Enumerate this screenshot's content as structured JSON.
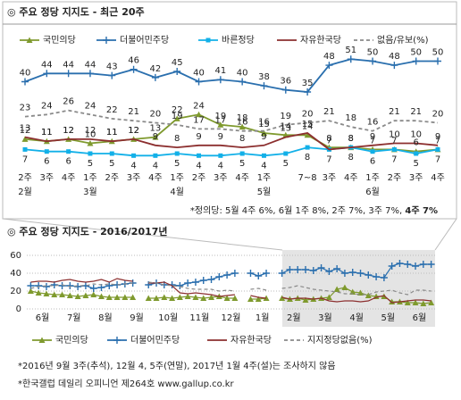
{
  "chart_data": [
    {
      "type": "line",
      "title": "◎  주요 정당 지지도 - 최근 20주",
      "categories": [
        "2주",
        "3주",
        "4주",
        "1주",
        "2주",
        "3주",
        "4주",
        "1주",
        "2주",
        "3주",
        "4주",
        "1주",
        null,
        "7~8",
        "3주",
        "4주",
        "1주",
        "2주",
        "3주",
        "4주"
      ],
      "month_labels": [
        "2월",
        null,
        null,
        "3월",
        null,
        null,
        null,
        "4월",
        null,
        null,
        null,
        "5월",
        null,
        null,
        null,
        null,
        "6월",
        null,
        null,
        null
      ],
      "ylim": [
        0,
        55
      ],
      "data_labels": true,
      "series": [
        {
          "name": "국민의당",
          "color": "#7f9a2e",
          "marker": "triangle",
          "values": [
            12,
            11,
            12,
            10,
            11,
            12,
            13,
            22,
            24,
            19,
            18,
            15,
            14,
            14,
            8,
            8,
            7,
            7,
            6,
            7
          ]
        },
        {
          "name": "더불어민주당",
          "color": "#2a6fae",
          "marker": "plus",
          "values": [
            40,
            44,
            44,
            44,
            43,
            46,
            42,
            45,
            40,
            41,
            40,
            38,
            36,
            35,
            48,
            51,
            50,
            48,
            50,
            50
          ]
        },
        {
          "name": "바른정당",
          "color": "#12b0e8",
          "marker": "square",
          "label_position": "below",
          "values": [
            7,
            6,
            6,
            5,
            5,
            4,
            4,
            5,
            4,
            4,
            5,
            4,
            5,
            8,
            7,
            8,
            6,
            7,
            5,
            7
          ]
        },
        {
          "name": "자유한국당",
          "color": "#8c2f2f",
          "values": [
            13,
            11,
            12,
            12,
            11,
            12,
            9,
            8,
            9,
            9,
            8,
            9,
            13,
            15,
            7,
            8,
            9,
            10,
            10,
            9
          ]
        },
        {
          "name": "없음/유보(%)",
          "color": "#8a8a8a",
          "dashed": true,
          "values": [
            23,
            24,
            26,
            24,
            22,
            21,
            20,
            19,
            17,
            17,
            16,
            16,
            19,
            20,
            21,
            18,
            16,
            21,
            21,
            20
          ]
        }
      ],
      "note": "*정의당: 5월 4주 6%, 6월 1주 8%, 2주 7%, 3주 7%,",
      "note_bold": "4주 7%"
    },
    {
      "type": "line",
      "title": "◎  주요 정당 지지도 - 2016/2017년",
      "categories": [
        "6월",
        null,
        null,
        null,
        "7월",
        null,
        null,
        null,
        "8월",
        null,
        null,
        null,
        "9월",
        null,
        null,
        null,
        "10월",
        null,
        null,
        null,
        "11월",
        null,
        null,
        null,
        "12월",
        null,
        null,
        null,
        "1월",
        null,
        null,
        null,
        "2월",
        null,
        null,
        null,
        "3월",
        null,
        null,
        null,
        "4월",
        null,
        null,
        null,
        "5월",
        null,
        null,
        null,
        "6월",
        null,
        null,
        null
      ],
      "ylim": [
        0,
        65
      ],
      "yticks": [
        0,
        20,
        40,
        60
      ],
      "grid": true,
      "series": [
        {
          "name": "국민의당",
          "color": "#7f9a2e",
          "marker": "triangle",
          "values": [
            20,
            18,
            17,
            16,
            16,
            15,
            14,
            15,
            16,
            14,
            13,
            13,
            13,
            13,
            null,
            12,
            12,
            13,
            12,
            13,
            14,
            13,
            12,
            13,
            14,
            12,
            12,
            null,
            11,
            11,
            12,
            null,
            12,
            11,
            12,
            10,
            11,
            12,
            13,
            22,
            24,
            19,
            18,
            15,
            14,
            14,
            8,
            8,
            7,
            7,
            6,
            7
          ]
        },
        {
          "name": "더불어민주당",
          "color": "#2a6fae",
          "marker": "plus",
          "values": [
            26,
            26,
            25,
            27,
            26,
            26,
            25,
            26,
            23,
            24,
            26,
            27,
            28,
            29,
            null,
            27,
            29,
            27,
            27,
            26,
            29,
            30,
            32,
            33,
            36,
            38,
            40,
            null,
            40,
            37,
            40,
            null,
            40,
            44,
            44,
            44,
            43,
            46,
            42,
            45,
            40,
            41,
            40,
            38,
            36,
            35,
            48,
            51,
            50,
            48,
            50,
            50
          ]
        },
        {
          "name": "자유한국당",
          "color": "#8c2f2f",
          "values": [
            30,
            31,
            31,
            30,
            32,
            33,
            31,
            30,
            31,
            33,
            30,
            34,
            32,
            31,
            null,
            29,
            29,
            30,
            26,
            18,
            17,
            18,
            17,
            16,
            14,
            15,
            16,
            null,
            15,
            13,
            12,
            null,
            13,
            11,
            12,
            12,
            11,
            12,
            9,
            8,
            9,
            9,
            8,
            9,
            13,
            15,
            7,
            8,
            9,
            10,
            10,
            9
          ]
        },
        {
          "name": "지지정당없음(%)",
          "color": "#8a8a8a",
          "dashed": true,
          "values": [
            23,
            25,
            26,
            26,
            27,
            25,
            26,
            26,
            28,
            27,
            28,
            27,
            28,
            29,
            null,
            30,
            29,
            27,
            26,
            25,
            23,
            22,
            22,
            22,
            20,
            21,
            20,
            null,
            22,
            23,
            21,
            null,
            23,
            24,
            26,
            24,
            22,
            21,
            20,
            19,
            17,
            17,
            16,
            16,
            19,
            20,
            21,
            18,
            16,
            21,
            21,
            20
          ]
        }
      ],
      "notes": [
        "*2016년 9월 3주(추석), 12월 4, 5주(연말), 2017년 1월 4주(설)는 조사하지 않음",
        "*한국갤럽 데일리 오피니언 제264호 www.gallup.co.kr"
      ]
    }
  ]
}
